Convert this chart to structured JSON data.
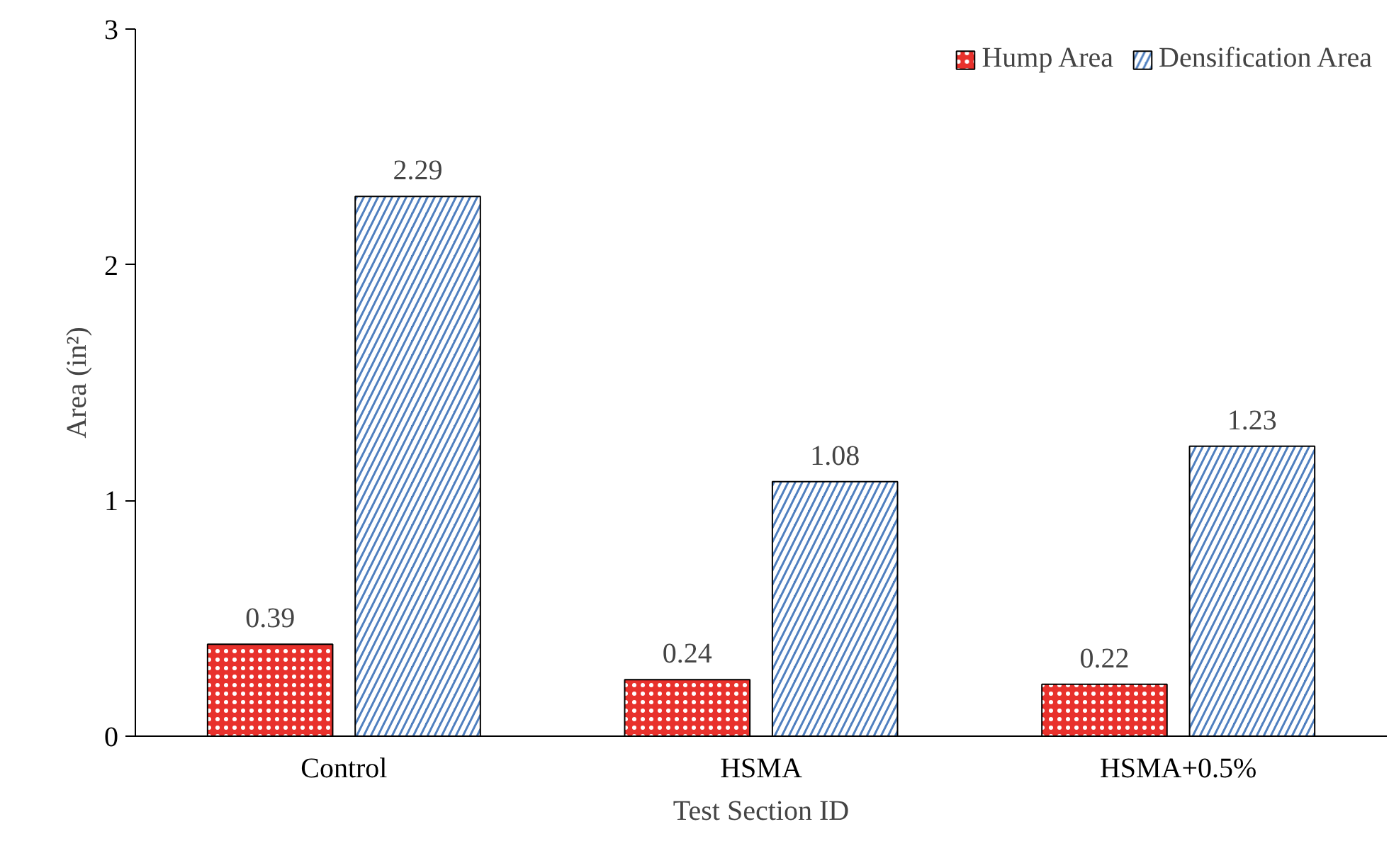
{
  "chart_data": {
    "type": "bar",
    "xlabel": "Test Section ID",
    "ylabel": "Area (in²)",
    "categories": [
      "Control",
      "HSMA",
      "HSMA+0.5%"
    ],
    "series": [
      {
        "name": "Hump Area",
        "color": "#e8312c",
        "values": [
          0.39,
          0.24,
          0.22
        ]
      },
      {
        "name": "Densification Area",
        "color": "#4f7fbf",
        "values": [
          2.29,
          1.08,
          1.23
        ]
      }
    ],
    "ylim": [
      0,
      3
    ],
    "yticks": [
      0,
      1,
      2,
      3
    ],
    "grid": false,
    "legend": "top right",
    "data_labels": true
  }
}
